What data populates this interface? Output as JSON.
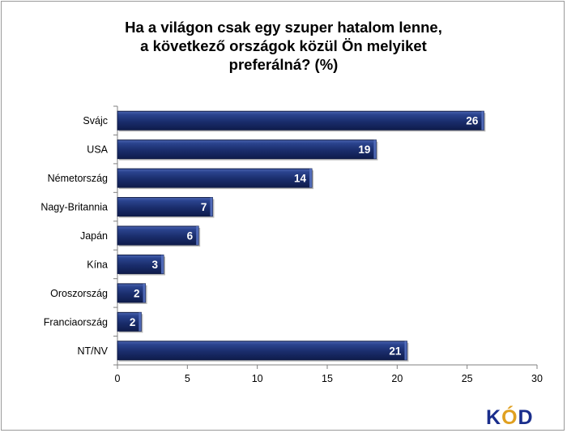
{
  "chart_data": {
    "type": "bar",
    "orientation": "horizontal",
    "title_lines": [
      "Ha a világon csak egy szuper hatalom lenne,",
      "a következő országok közül Ön melyiket",
      "preferálná? (%)"
    ],
    "categories": [
      "Svájc",
      "USA",
      "Németország",
      "Nagy-Britannia",
      "Japán",
      "Kína",
      "Oroszország",
      "Franciaország",
      "NT/NV"
    ],
    "values": [
      26,
      19,
      14,
      7,
      6,
      3,
      2,
      2,
      21
    ],
    "value_labels": [
      "26",
      "19",
      "14",
      "7",
      "6",
      "3",
      "2",
      "2",
      "21"
    ],
    "plotted_values": [
      26.2,
      18.5,
      13.9,
      6.8,
      5.8,
      3.3,
      2.0,
      1.7,
      20.7
    ],
    "xlim": [
      0,
      30
    ],
    "xticks": [
      "0",
      "5",
      "10",
      "15",
      "20",
      "25",
      "30"
    ],
    "grid": false,
    "bar_color": "#1c2f6e",
    "bar_edge_color": "#0e1a45"
  },
  "logo": {
    "k": "K",
    "o": "Ó",
    "d": "D"
  }
}
